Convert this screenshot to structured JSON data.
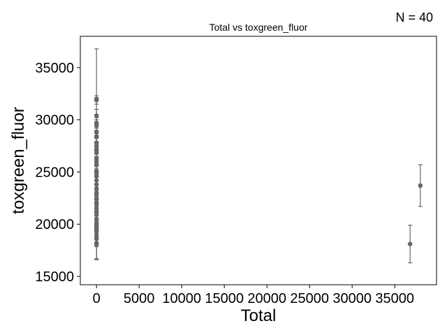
{
  "annotation": {
    "n_label": "N = 40"
  },
  "chart_data": {
    "type": "scatter",
    "title": "Total vs toxgreen_fluor",
    "xlabel": "Total",
    "ylabel": "toxgreen_fluor",
    "xlim": [
      -1900,
      39900
    ],
    "ylim": [
      14200,
      38000
    ],
    "xticks": [
      0,
      5000,
      10000,
      15000,
      20000,
      25000,
      30000,
      35000
    ],
    "yticks": [
      15000,
      20000,
      25000,
      30000,
      35000
    ],
    "grid": false,
    "color": "#666666",
    "points": [
      {
        "x": 0,
        "y": 32000,
        "err": 4800
      },
      {
        "x": 0,
        "y": 31900,
        "err": 400
      },
      {
        "x": 0,
        "y": 30400,
        "err": 600
      },
      {
        "x": 0,
        "y": 29700,
        "err": 500
      },
      {
        "x": 0,
        "y": 29500,
        "err": 500
      },
      {
        "x": 0,
        "y": 28800,
        "err": 500
      },
      {
        "x": 0,
        "y": 28400,
        "err": 500
      },
      {
        "x": 0,
        "y": 27800,
        "err": 400
      },
      {
        "x": 0,
        "y": 27500,
        "err": 400
      },
      {
        "x": 0,
        "y": 27100,
        "err": 400
      },
      {
        "x": 0,
        "y": 26900,
        "err": 400
      },
      {
        "x": 0,
        "y": 26300,
        "err": 400
      },
      {
        "x": 0,
        "y": 26000,
        "err": 400
      },
      {
        "x": 0,
        "y": 25700,
        "err": 400
      },
      {
        "x": 0,
        "y": 25100,
        "err": 400
      },
      {
        "x": 0,
        "y": 24900,
        "err": 400
      },
      {
        "x": 0,
        "y": 24600,
        "err": 400
      },
      {
        "x": 0,
        "y": 24200,
        "err": 400
      },
      {
        "x": 0,
        "y": 23800,
        "err": 400
      },
      {
        "x": 0,
        "y": 23400,
        "err": 400
      },
      {
        "x": 0,
        "y": 23000,
        "err": 400
      },
      {
        "x": 0,
        "y": 22800,
        "err": 400
      },
      {
        "x": 0,
        "y": 22400,
        "err": 400
      },
      {
        "x": 0,
        "y": 22100,
        "err": 400
      },
      {
        "x": 0,
        "y": 21900,
        "err": 400
      },
      {
        "x": 0,
        "y": 21500,
        "err": 400
      },
      {
        "x": 0,
        "y": 21200,
        "err": 400
      },
      {
        "x": 0,
        "y": 20900,
        "err": 400
      },
      {
        "x": 0,
        "y": 20500,
        "err": 400
      },
      {
        "x": 0,
        "y": 20200,
        "err": 400
      },
      {
        "x": 0,
        "y": 20000,
        "err": 400
      },
      {
        "x": 0,
        "y": 19800,
        "err": 400
      },
      {
        "x": 0,
        "y": 19500,
        "err": 400
      },
      {
        "x": 0,
        "y": 19300,
        "err": 400
      },
      {
        "x": 0,
        "y": 18900,
        "err": 2300
      },
      {
        "x": 0,
        "y": 18600,
        "err": 1900
      },
      {
        "x": 0,
        "y": 18200,
        "err": 1500
      },
      {
        "x": 0,
        "y": 18000,
        "err": 1400
      },
      {
        "x": 36800,
        "y": 18100,
        "err": 1800
      },
      {
        "x": 38000,
        "y": 23700,
        "err": 2000
      }
    ]
  }
}
